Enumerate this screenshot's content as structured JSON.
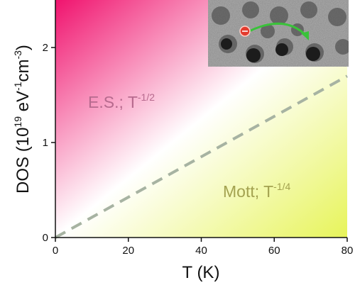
{
  "chart_data": {
    "type": "line",
    "title": "",
    "xlabel": "T (K)",
    "ylabel": {
      "base": "DOS (10",
      "exp1": "19",
      "mid1": " eV",
      "exp2": "-1",
      "mid2": "cm",
      "exp3": "-3",
      "end": ")"
    },
    "xlim": [
      0,
      80
    ],
    "ylim": [
      0,
      2.5
    ],
    "xticks": [
      0,
      20,
      40,
      60,
      80
    ],
    "yticks": [
      0,
      1,
      2
    ],
    "grid": false,
    "series": [
      {
        "style": "dashed",
        "color": "#a7b3a2",
        "x": [
          0,
          80
        ],
        "y": [
          0,
          1.7
        ]
      }
    ],
    "regions": [
      {
        "label": "E.S.; T",
        "exponent": "-1/2",
        "color": "#b76a8e"
      },
      {
        "label": "Mott; T",
        "exponent": "-1/4",
        "color": "#a3a250"
      }
    ],
    "inset": {
      "kind": "micrograph with hopping electron arrow",
      "arrow_color": "#3ac23a",
      "electron_color": "#e23b2e"
    }
  },
  "colors": {
    "top_left": "#f0136e",
    "middle": "#ffffff",
    "bottom_right": "#e7f45a"
  }
}
